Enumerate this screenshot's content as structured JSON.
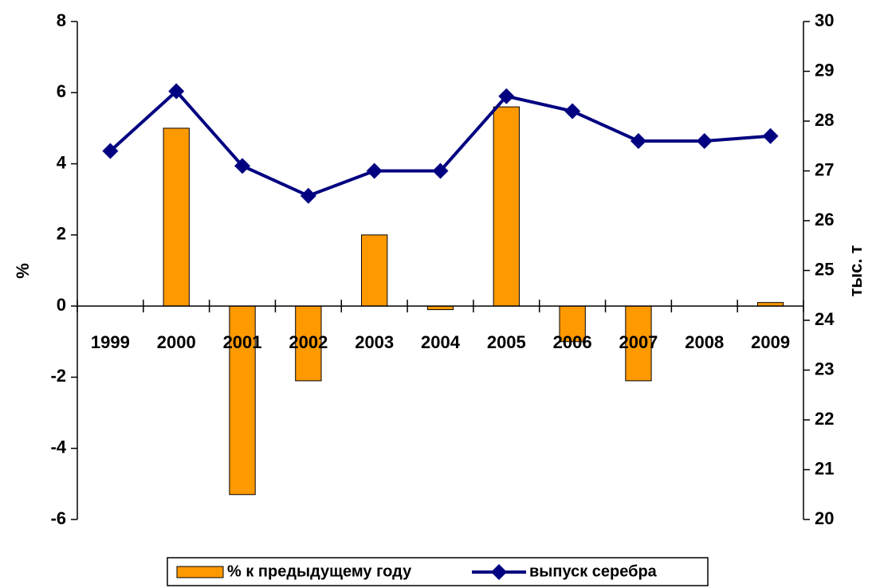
{
  "chart_data": {
    "type": "bar",
    "categories": [
      "1999",
      "2000",
      "2001",
      "2002",
      "2003",
      "2004",
      "2005",
      "2006",
      "2007",
      "2008",
      "2009"
    ],
    "series": [
      {
        "name": "% к предыдущему году",
        "type": "bar",
        "color": "#FF9900",
        "values": [
          0,
          5,
          -5.3,
          -2.1,
          2,
          -0.1,
          5.6,
          -1,
          -2.1,
          0,
          0.1
        ]
      },
      {
        "name": "выпуск серебра",
        "type": "line",
        "axis": "y2",
        "color": "#000080",
        "values": [
          27.4,
          28.6,
          27.1,
          26.5,
          27.0,
          27.0,
          28.5,
          28.2,
          27.6,
          27.6,
          27.7
        ]
      }
    ],
    "ylabel": "%",
    "y2label": "тыс. т",
    "ylim": [
      -6,
      8
    ],
    "yticks": [
      -6,
      -4,
      -2,
      0,
      2,
      4,
      6,
      8
    ],
    "y2lim": [
      20,
      30
    ],
    "y2ticks": [
      20,
      21,
      22,
      23,
      24,
      25,
      26,
      27,
      28,
      29,
      30
    ],
    "legend": "bottom"
  }
}
